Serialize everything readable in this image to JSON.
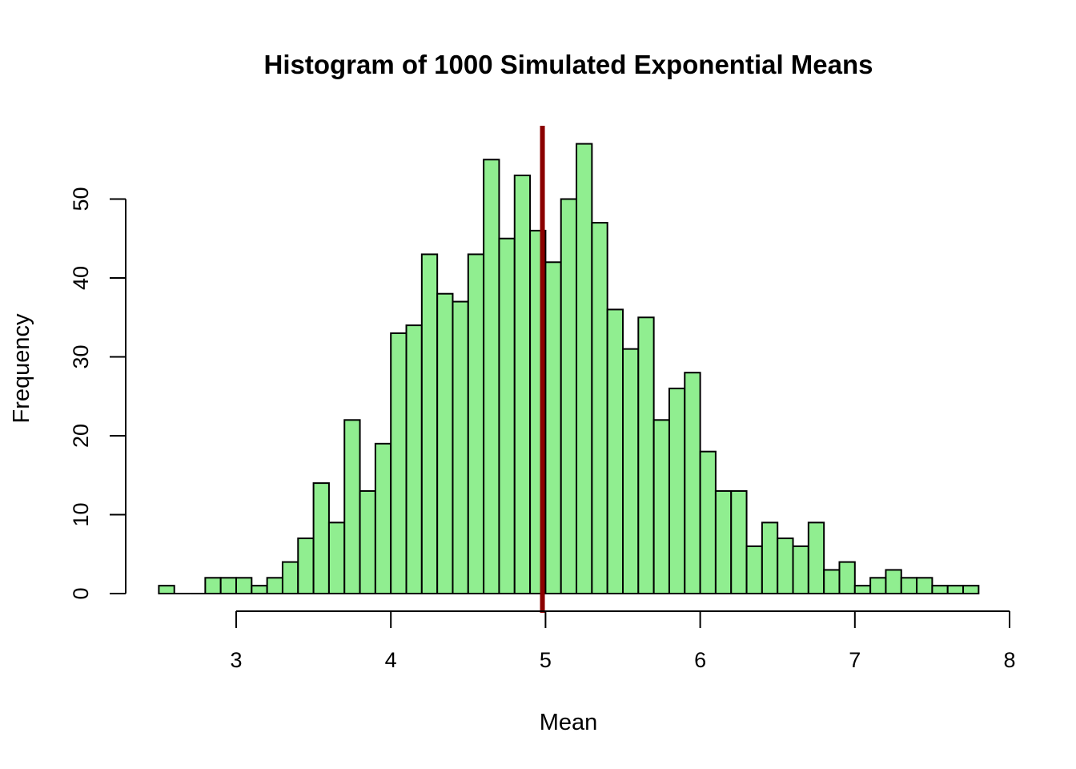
{
  "chart_data": {
    "type": "bar",
    "title": "Histogram of 1000 Simulated Exponential Means",
    "xlabel": "Mean",
    "ylabel": "Frequency",
    "x_ticks": [
      "3",
      "4",
      "5",
      "6",
      "7",
      "8"
    ],
    "y_ticks": [
      "0",
      "10",
      "20",
      "30",
      "40",
      "50"
    ],
    "xlim": [
      2.5,
      8.0
    ],
    "ylim": [
      0,
      59
    ],
    "bin_start": 2.5,
    "bin_width": 0.1,
    "values": [
      1,
      0,
      0,
      2,
      2,
      2,
      1,
      2,
      4,
      7,
      14,
      9,
      22,
      13,
      19,
      33,
      34,
      43,
      38,
      37,
      43,
      55,
      45,
      53,
      46,
      42,
      50,
      57,
      47,
      36,
      31,
      35,
      22,
      26,
      28,
      18,
      13,
      13,
      6,
      9,
      7,
      6,
      9,
      3,
      4,
      1,
      2,
      3,
      2,
      2,
      1,
      1,
      1
    ],
    "mean_line": {
      "x": 4.98,
      "color": "#8b0000"
    },
    "bar_color": "#90ee90",
    "grid": false,
    "legend": "none"
  }
}
